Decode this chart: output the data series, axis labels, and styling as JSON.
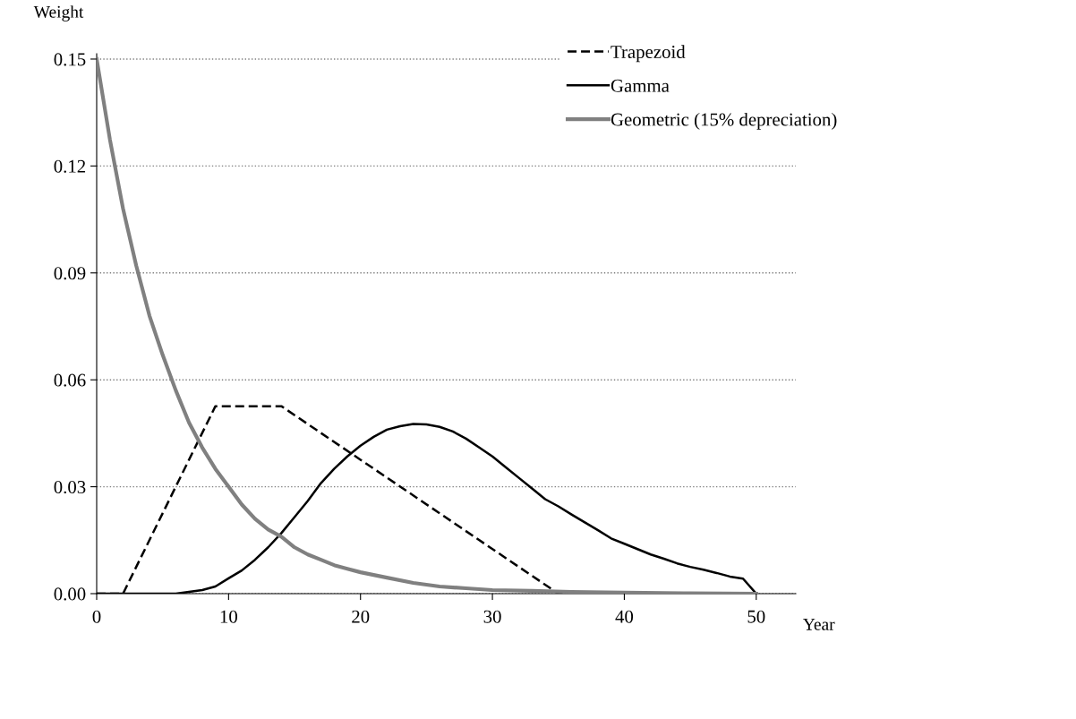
{
  "chart_data": {
    "type": "line",
    "xlabel": "Year",
    "ylabel": "Weight",
    "xlim": [
      0,
      53
    ],
    "xticks": [
      0,
      10,
      20,
      30,
      40,
      50
    ],
    "ylim": [
      0,
      0.15
    ],
    "yticks": [
      {
        "value": 0,
        "label": "0.00"
      },
      0.03,
      0.06,
      0.09,
      0.12,
      0.15
    ],
    "grid": "y",
    "legend": "top right",
    "marker": "none",
    "series": [
      {
        "name": "Trapezoid",
        "color": "#000000",
        "line_style": "dashed",
        "x": [
          0,
          2,
          9,
          14,
          35,
          50
        ],
        "values": [
          0,
          0,
          0.0526,
          0.0526,
          0,
          0
        ]
      },
      {
        "name": "Gamma",
        "color": "#000000",
        "line_style": "solid",
        "x": [
          0,
          6,
          7,
          8,
          9,
          10,
          11,
          12,
          13,
          14,
          15,
          16,
          17,
          18,
          19,
          20,
          21,
          22,
          23,
          24,
          25,
          26,
          27,
          28,
          29,
          30,
          31,
          32,
          33,
          34,
          35,
          36,
          37,
          38,
          39,
          40,
          41,
          42,
          43,
          44,
          45,
          46,
          47,
          48,
          49,
          50
        ],
        "values": [
          0,
          0,
          0.0005,
          0.001,
          0.002,
          0.0043,
          0.0065,
          0.0095,
          0.013,
          0.017,
          0.0215,
          0.026,
          0.031,
          0.035,
          0.0385,
          0.0415,
          0.044,
          0.046,
          0.047,
          0.0476,
          0.0475,
          0.0468,
          0.0455,
          0.0435,
          0.041,
          0.0385,
          0.0355,
          0.0325,
          0.0295,
          0.0265,
          0.0245,
          0.0222,
          0.02,
          0.0178,
          0.0155,
          0.014,
          0.0125,
          0.011,
          0.0098,
          0.0085,
          0.0075,
          0.0067,
          0.0058,
          0.0048,
          0.0042,
          0
        ]
      },
      {
        "name": "Geometric (15% depreciation)",
        "color": "#808080",
        "line_style": "solid",
        "x": [
          0,
          1,
          2,
          3,
          4,
          5,
          6,
          7,
          8,
          9,
          10,
          11,
          12,
          13,
          14,
          15,
          16,
          17,
          18,
          19,
          20,
          22,
          24,
          26,
          28,
          30,
          33,
          36,
          40,
          45,
          50
        ],
        "values": [
          0.15,
          0.1275,
          0.108,
          0.092,
          0.078,
          0.067,
          0.057,
          0.048,
          0.041,
          0.035,
          0.03,
          0.025,
          0.021,
          0.018,
          0.016,
          0.013,
          0.011,
          0.0095,
          0.008,
          0.007,
          0.006,
          0.0045,
          0.003,
          0.002,
          0.0015,
          0.001,
          0.0008,
          0.0005,
          0.0003,
          0.0001,
          0
        ]
      }
    ]
  }
}
